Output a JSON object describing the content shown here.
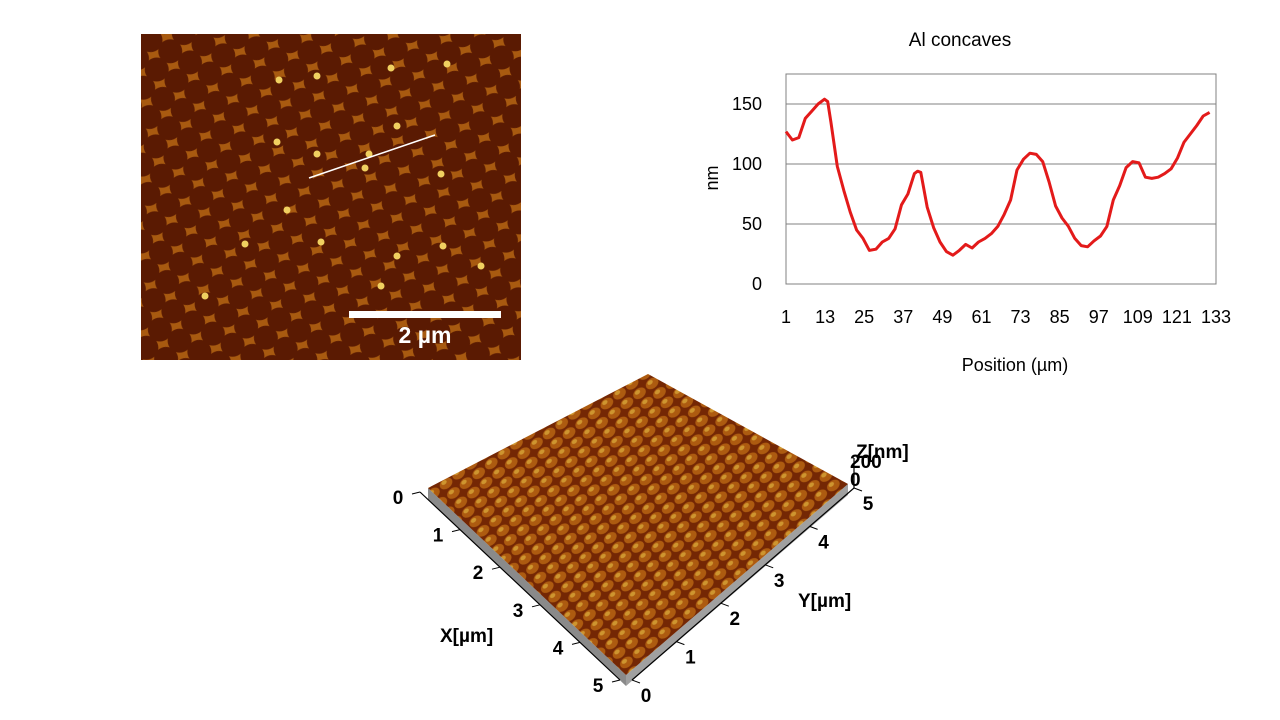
{
  "afm_image": {
    "scale_bar_label": "2 µm",
    "colors": {
      "dark": "#5a1a02",
      "mid": "#a85a10",
      "bright": "#f0d060"
    }
  },
  "chart_data": {
    "type": "line",
    "title": "Al concaves",
    "xlabel": "Position (µm)",
    "ylabel": "nm",
    "ylim": [
      0,
      175
    ],
    "yticks": [
      0,
      50,
      100,
      150
    ],
    "xtick_labels": [
      "1",
      "13",
      "25",
      "37",
      "49",
      "61",
      "73",
      "85",
      "97",
      "109",
      "121",
      "133"
    ],
    "grid": "horizontal",
    "series": [
      {
        "color": "#e31a1a",
        "x": [
          1,
          3,
          5,
          7,
          9,
          11,
          13,
          14,
          15,
          17,
          19,
          21,
          23,
          25,
          27,
          29,
          31,
          33,
          35,
          37,
          39,
          41,
          42,
          43,
          45,
          47,
          49,
          51,
          53,
          55,
          57,
          59,
          61,
          63,
          65,
          67,
          69,
          71,
          73,
          75,
          77,
          79,
          81,
          83,
          85,
          87,
          89,
          91,
          93,
          95,
          97,
          99,
          101,
          103,
          105,
          107,
          109,
          111,
          113,
          115,
          117,
          119,
          121,
          123,
          125,
          127,
          129,
          131,
          133
        ],
        "y": [
          127,
          120,
          122,
          138,
          144,
          150,
          154,
          152,
          135,
          98,
          78,
          60,
          45,
          38,
          28,
          29,
          35,
          38,
          46,
          66,
          75,
          92,
          94,
          93,
          64,
          47,
          35,
          27,
          24,
          28,
          33,
          30,
          35,
          38,
          42,
          48,
          58,
          70,
          95,
          104,
          109,
          108,
          102,
          85,
          65,
          55,
          48,
          38,
          32,
          31,
          36,
          40,
          48,
          70,
          82,
          97,
          102,
          101,
          89,
          88,
          89,
          92,
          96,
          105,
          118,
          125,
          132,
          140,
          143
        ]
      }
    ]
  },
  "afm3d": {
    "x_axis_label": "X[µm]",
    "y_axis_label": "Y[µm]",
    "z_axis_label": "Z[nm]",
    "x_ticks": [
      "0",
      "1",
      "2",
      "3",
      "4",
      "5"
    ],
    "y_ticks": [
      "0",
      "1",
      "2",
      "3",
      "4",
      "5"
    ],
    "z_ticks": [
      "0",
      "200"
    ]
  }
}
